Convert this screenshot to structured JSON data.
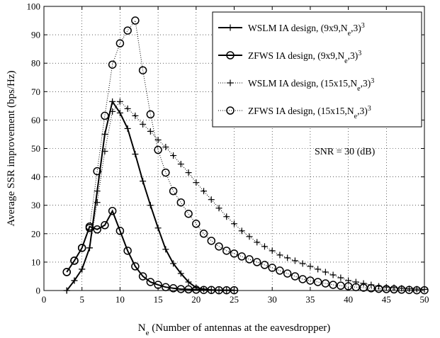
{
  "chart_data": {
    "type": "line",
    "xlabel": {
      "main": "N",
      "sub": "e",
      "rest": " (Number of antennas at the eavesdropper)"
    },
    "ylabel": "Average SSR improvement (bps/Hz)",
    "xlim": [
      0,
      50
    ],
    "ylim": [
      0,
      100
    ],
    "xticks": [
      0,
      5,
      10,
      15,
      20,
      25,
      30,
      35,
      40,
      45,
      50
    ],
    "yticks": [
      0,
      10,
      20,
      30,
      40,
      50,
      60,
      70,
      80,
      90,
      100
    ],
    "grid": true,
    "legend_position": "top-right",
    "annotation": "SNR = 30 (dB)",
    "series": [
      {
        "name": "WSLM IA design, (9x9,N_e,3)^3",
        "legend": {
          "pre": "WSLM IA design, (9x9,N",
          "sub": "e",
          "mid": ",3)",
          "sup": "3"
        },
        "marker": "plus",
        "line": "solid",
        "x": [
          3,
          4,
          5,
          6,
          7,
          8,
          9,
          10,
          11,
          12,
          13,
          14,
          15,
          16,
          17,
          18,
          19,
          20,
          21,
          22,
          23,
          24,
          25
        ],
        "y": [
          0,
          3.5,
          7.5,
          15,
          35,
          55,
          66.5,
          62.5,
          57,
          48,
          38.5,
          30,
          22,
          14.5,
          9.5,
          6,
          3,
          1,
          0.5,
          0.2,
          0.1,
          0.1,
          0.1
        ]
      },
      {
        "name": "ZFWS IA design, (9x9,N_e,3)^3",
        "legend": {
          "pre": "ZFWS IA design, (9x9,N",
          "sub": "e",
          "mid": ",3)",
          "sup": "3"
        },
        "marker": "circle",
        "line": "solid",
        "x": [
          3,
          4,
          5,
          6,
          7,
          8,
          9,
          10,
          11,
          12,
          13,
          14,
          15,
          16,
          17,
          18,
          19,
          20,
          21,
          22,
          23,
          24,
          25
        ],
        "y": [
          6.5,
          10.5,
          15,
          22.5,
          21.5,
          23,
          28,
          21,
          14,
          8.5,
          5,
          3,
          2,
          1.2,
          0.8,
          0.5,
          0.4,
          0.3,
          0.2,
          0.2,
          0.1,
          0.1,
          0.1
        ]
      },
      {
        "name": "WSLM IA design, (15x15,N_e,3)^3",
        "legend": {
          "pre": "WSLM IA design, (15x15,N",
          "sub": "e",
          "mid": ",3)",
          "sup": "3"
        },
        "marker": "plus",
        "line": "dotted",
        "x": [
          3,
          4,
          5,
          6,
          7,
          8,
          9,
          10,
          11,
          12,
          13,
          14,
          15,
          16,
          17,
          18,
          19,
          20,
          21,
          22,
          23,
          24,
          25,
          26,
          27,
          28,
          29,
          30,
          31,
          32,
          33,
          34,
          35,
          36,
          37,
          38,
          39,
          40,
          41,
          42,
          43,
          44,
          45,
          46,
          47,
          48,
          49,
          50
        ],
        "y": [
          0,
          3.5,
          7.5,
          15,
          31,
          49,
          63,
          66.5,
          64,
          61.5,
          58.5,
          56,
          53,
          50.5,
          47.5,
          44.5,
          41.5,
          38,
          35,
          32,
          29,
          26,
          23.5,
          21,
          19,
          17,
          15.5,
          14,
          12.5,
          11.5,
          10.5,
          9.5,
          8.5,
          7.5,
          6.5,
          5.5,
          4.5,
          3.5,
          3,
          2.5,
          2,
          1.5,
          1.2,
          1,
          0.8,
          0.6,
          0.5,
          0.4
        ]
      },
      {
        "name": "ZFWS IA design, (15x15,N_e,3)^3",
        "legend": {
          "pre": "ZFWS IA design, (15x15,N",
          "sub": "e",
          "mid": ",3)",
          "sup": "3"
        },
        "marker": "circle",
        "line": "dotted",
        "x": [
          3,
          4,
          5,
          6,
          7,
          8,
          9,
          10,
          11,
          12,
          13,
          14,
          15,
          16,
          17,
          18,
          19,
          20,
          21,
          22,
          23,
          24,
          25,
          26,
          27,
          28,
          29,
          30,
          31,
          32,
          33,
          34,
          35,
          36,
          37,
          38,
          39,
          40,
          41,
          42,
          43,
          44,
          45,
          46,
          47,
          48,
          49,
          50
        ],
        "y": [
          6.5,
          10.5,
          15,
          22,
          42,
          61.5,
          79.5,
          87,
          91.5,
          95,
          77.5,
          62,
          49.5,
          41.5,
          35,
          31,
          27,
          23.5,
          20,
          17.5,
          15.5,
          14,
          13,
          12,
          11,
          10,
          9,
          8,
          7,
          6,
          5,
          4,
          3.5,
          3,
          2.5,
          2,
          1.7,
          1.5,
          1.2,
          1,
          0.8,
          0.6,
          0.5,
          0.4,
          0.3,
          0.2,
          0.1,
          0.1
        ]
      }
    ]
  }
}
